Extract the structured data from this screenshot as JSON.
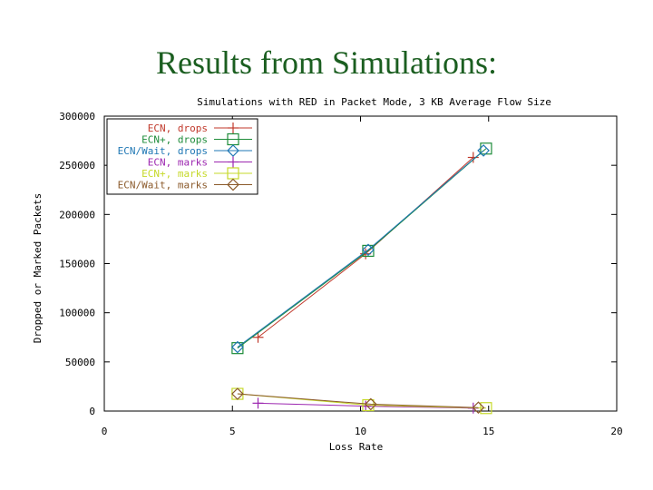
{
  "slide": {
    "title": "Results from Simulations:"
  },
  "chart_data": {
    "type": "line",
    "title": "Simulations with RED in Packet Mode, 3 KB Average Flow Size",
    "xlabel": "Loss Rate",
    "ylabel": "Dropped or Marked Packets",
    "xlim": [
      0,
      20
    ],
    "ylim": [
      0,
      300000
    ],
    "xticks": [
      "0",
      "5",
      "10",
      "15",
      "20"
    ],
    "yticks": [
      "0",
      "50000",
      "100000",
      "150000",
      "200000",
      "250000",
      "300000"
    ],
    "grid": false,
    "legend_position": "top-left",
    "series": [
      {
        "name": "ECN, drops",
        "color": "#c0392b",
        "marker": "plus",
        "x": [
          6.0,
          10.2,
          14.4
        ],
        "y": [
          75000,
          160000,
          258000
        ]
      },
      {
        "name": "ECN+, drops",
        "color": "#1e8c3a",
        "marker": "square",
        "x": [
          5.2,
          10.3,
          14.9
        ],
        "y": [
          64000,
          163000,
          267000
        ]
      },
      {
        "name": "ECN/Wait, drops",
        "color": "#1f77b4",
        "marker": "diamond",
        "x": [
          5.2,
          10.3,
          14.8
        ],
        "y": [
          65000,
          164000,
          265000
        ]
      },
      {
        "name": "ECN, marks",
        "color": "#9c27b0",
        "marker": "plus",
        "x": [
          6.0,
          10.2,
          14.4
        ],
        "y": [
          8000,
          5000,
          3000
        ]
      },
      {
        "name": "ECN+, marks",
        "color": "#c6d92a",
        "marker": "square",
        "x": [
          5.2,
          10.3,
          14.9
        ],
        "y": [
          17500,
          6000,
          3000
        ]
      },
      {
        "name": "ECN/Wait, marks",
        "color": "#8b5a2b",
        "marker": "diamond",
        "x": [
          5.2,
          10.4,
          14.6
        ],
        "y": [
          17500,
          7000,
          3500
        ]
      }
    ]
  }
}
